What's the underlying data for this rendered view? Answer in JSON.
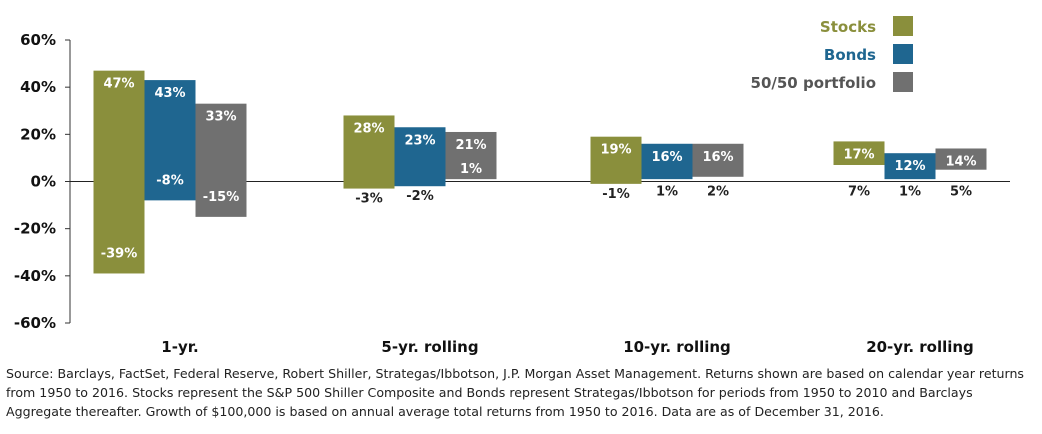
{
  "chart_data": {
    "type": "bar",
    "categories": [
      "1-yr.",
      "5-yr. rolling",
      "10-yr. rolling",
      "20-yr. rolling"
    ],
    "ylim": [
      -60,
      60
    ],
    "yticks": [
      60,
      40,
      20,
      0,
      -20,
      -40,
      -60
    ],
    "ytick_labels": [
      "60%",
      "40%",
      "20%",
      "0%",
      "-20%",
      "-40%",
      "-60%"
    ],
    "legend_position": "top-right",
    "grid": false,
    "series": [
      {
        "name": "Stocks",
        "color": "#8a8f3c",
        "text_color": "#8a8f3c",
        "high": [
          47,
          28,
          19,
          17
        ],
        "low": [
          -39,
          -3,
          -1,
          7
        ],
        "high_labels": [
          "47%",
          "28%",
          "19%",
          "17%"
        ],
        "low_labels": [
          "-39%",
          "-3%",
          "-1%",
          "7%"
        ]
      },
      {
        "name": "Bonds",
        "color": "#1f6690",
        "text_color": "#1f6690",
        "high": [
          43,
          23,
          16,
          12
        ],
        "low": [
          -8,
          -2,
          1,
          1
        ],
        "high_labels": [
          "43%",
          "23%",
          "16%",
          "12%"
        ],
        "low_labels": [
          "-8%",
          "-2%",
          "1%",
          "1%"
        ]
      },
      {
        "name": "50/50 portfolio",
        "color": "#707070",
        "text_color": "#555555",
        "high": [
          33,
          21,
          16,
          14
        ],
        "low": [
          -15,
          1,
          2,
          5
        ],
        "high_labels": [
          "33%",
          "21%",
          "16%",
          "14%"
        ],
        "low_labels": [
          "-15%",
          "1%",
          "2%",
          "5%"
        ]
      }
    ]
  },
  "source_note": "Source: Barclays, FactSet, Federal Reserve, Robert Shiller, Strategas/Ibbotson, J.P. Morgan Asset Management. Returns shown are based on calendar year returns from 1950 to 2016. Stocks represent the S&P 500 Shiller Composite and Bonds represent Strategas/Ibbotson for periods from 1950 to 2010 and Barclays Aggregate thereafter. Growth of $100,000 is based on annual average total returns from 1950 to 2016. Data are as of December 31, 2016."
}
